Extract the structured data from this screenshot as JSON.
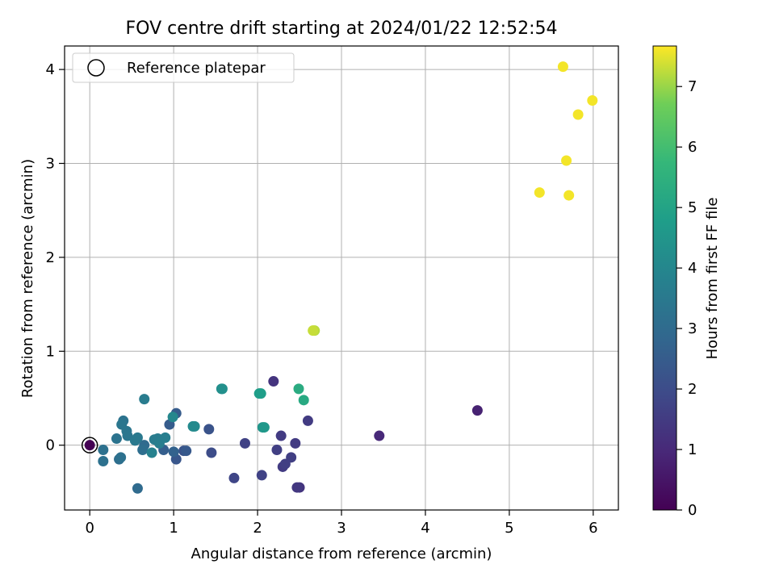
{
  "chart_data": {
    "type": "scatter",
    "title": "FOV centre drift starting at 2024/01/22 12:52:54",
    "xlabel": "Angular distance from reference (arcmin)",
    "ylabel": "Rotation from reference (arcmin)",
    "xlim": [
      -0.3,
      6.3
    ],
    "ylim": [
      -0.69,
      4.25
    ],
    "x_ticks": [
      0,
      1,
      2,
      3,
      4,
      5,
      6
    ],
    "y_ticks": [
      0,
      1,
      2,
      3,
      4
    ],
    "grid": true,
    "legend": {
      "position": "top-left",
      "entries": [
        "Reference platepar"
      ]
    },
    "reference_point": {
      "x": 0,
      "y": 0
    },
    "colorbar": {
      "label": "Hours from first FF file",
      "range": [
        0,
        7.67
      ],
      "ticks": [
        0,
        1,
        2,
        3,
        4,
        5,
        6,
        7
      ],
      "colormap": "viridis"
    },
    "points": [
      {
        "x": 0.0,
        "y": 0.0,
        "hours": 0.0
      },
      {
        "x": 4.62,
        "y": 0.37,
        "hours": 0.8
      },
      {
        "x": 3.45,
        "y": 0.1,
        "hours": 1.0
      },
      {
        "x": 2.19,
        "y": 0.68,
        "hours": 1.3
      },
      {
        "x": 2.5,
        "y": -0.45,
        "hours": 1.3
      },
      {
        "x": 2.47,
        "y": -0.45,
        "hours": 1.4
      },
      {
        "x": 2.6,
        "y": 0.26,
        "hours": 1.5
      },
      {
        "x": 2.28,
        "y": 0.1,
        "hours": 1.5
      },
      {
        "x": 2.3,
        "y": -0.23,
        "hours": 1.5
      },
      {
        "x": 2.45,
        "y": 0.02,
        "hours": 1.5
      },
      {
        "x": 2.4,
        "y": -0.13,
        "hours": 1.6
      },
      {
        "x": 2.23,
        "y": -0.05,
        "hours": 1.6
      },
      {
        "x": 2.33,
        "y": -0.2,
        "hours": 1.6
      },
      {
        "x": 1.85,
        "y": 0.02,
        "hours": 1.7
      },
      {
        "x": 2.05,
        "y": -0.32,
        "hours": 1.7
      },
      {
        "x": 1.72,
        "y": -0.35,
        "hours": 1.8
      },
      {
        "x": 1.45,
        "y": -0.08,
        "hours": 2.0
      },
      {
        "x": 1.42,
        "y": 0.17,
        "hours": 2.2
      },
      {
        "x": 1.12,
        "y": -0.06,
        "hours": 2.2
      },
      {
        "x": 1.03,
        "y": -0.15,
        "hours": 2.3
      },
      {
        "x": 1.15,
        "y": -0.06,
        "hours": 2.4
      },
      {
        "x": 0.95,
        "y": 0.22,
        "hours": 2.5
      },
      {
        "x": 1.03,
        "y": 0.34,
        "hours": 2.5
      },
      {
        "x": 0.88,
        "y": -0.05,
        "hours": 2.6
      },
      {
        "x": 1.0,
        "y": -0.07,
        "hours": 2.7
      },
      {
        "x": 0.57,
        "y": -0.46,
        "hours": 3.0
      },
      {
        "x": 0.65,
        "y": 0.0,
        "hours": 3.0
      },
      {
        "x": 0.63,
        "y": -0.05,
        "hours": 3.1
      },
      {
        "x": 0.35,
        "y": -0.15,
        "hours": 3.1
      },
      {
        "x": 0.37,
        "y": -0.13,
        "hours": 3.2
      },
      {
        "x": 0.16,
        "y": -0.17,
        "hours": 3.2
      },
      {
        "x": 0.16,
        "y": -0.05,
        "hours": 3.2
      },
      {
        "x": 0.32,
        "y": 0.07,
        "hours": 3.3
      },
      {
        "x": 0.4,
        "y": 0.26,
        "hours": 3.3
      },
      {
        "x": 0.38,
        "y": 0.22,
        "hours": 3.4
      },
      {
        "x": 0.44,
        "y": 0.15,
        "hours": 3.4
      },
      {
        "x": 0.45,
        "y": 0.1,
        "hours": 3.4
      },
      {
        "x": 0.54,
        "y": 0.05,
        "hours": 3.5
      },
      {
        "x": 0.57,
        "y": 0.08,
        "hours": 3.5
      },
      {
        "x": 0.65,
        "y": 0.49,
        "hours": 3.6
      },
      {
        "x": 0.77,
        "y": 0.06,
        "hours": 3.6
      },
      {
        "x": 0.81,
        "y": 0.07,
        "hours": 3.6
      },
      {
        "x": 0.83,
        "y": 0.02,
        "hours": 3.7
      },
      {
        "x": 0.9,
        "y": 0.08,
        "hours": 3.7
      },
      {
        "x": 0.74,
        "y": -0.08,
        "hours": 3.8
      },
      {
        "x": 0.99,
        "y": 0.3,
        "hours": 4.0
      },
      {
        "x": 1.23,
        "y": 0.2,
        "hours": 4.1
      },
      {
        "x": 1.25,
        "y": 0.2,
        "hours": 4.1
      },
      {
        "x": 1.57,
        "y": 0.6,
        "hours": 4.2
      },
      {
        "x": 1.58,
        "y": 0.6,
        "hours": 4.3
      },
      {
        "x": 2.06,
        "y": 0.19,
        "hours": 4.5
      },
      {
        "x": 2.08,
        "y": 0.19,
        "hours": 4.6
      },
      {
        "x": 2.02,
        "y": 0.55,
        "hours": 4.8
      },
      {
        "x": 2.04,
        "y": 0.55,
        "hours": 4.8
      },
      {
        "x": 2.55,
        "y": 0.48,
        "hours": 5.2
      },
      {
        "x": 2.49,
        "y": 0.6,
        "hours": 5.3
      },
      {
        "x": 2.68,
        "y": 1.22,
        "hours": 7.2
      },
      {
        "x": 2.66,
        "y": 1.22,
        "hours": 7.3
      },
      {
        "x": 5.36,
        "y": 2.69,
        "hours": 7.6
      },
      {
        "x": 5.71,
        "y": 2.66,
        "hours": 7.6
      },
      {
        "x": 5.68,
        "y": 3.03,
        "hours": 7.6
      },
      {
        "x": 5.82,
        "y": 3.52,
        "hours": 7.6
      },
      {
        "x": 5.99,
        "y": 3.67,
        "hours": 7.6
      },
      {
        "x": 5.64,
        "y": 4.03,
        "hours": 7.6
      }
    ]
  }
}
